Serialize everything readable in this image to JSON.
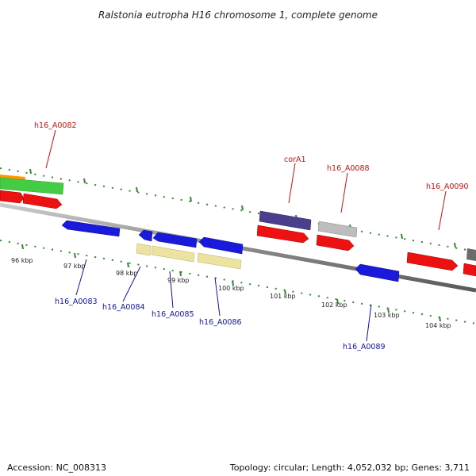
{
  "title": "Ralstonia eutropha H16 chromosome 1, complete genome",
  "footer": {
    "accession": "Accession: NC_008313",
    "summary": "Topology: circular; Length: 4,052,032 bp; Genes: 3,711"
  },
  "colors": {
    "backbone": "#8a8a8a",
    "tick": "#2e8b2e",
    "red_feature": "#ee1111",
    "blue_feature": "#1a1adc",
    "purple_feature": "#4a3f8c",
    "grey_feature": "#bdbdbd",
    "yellow_feature": "#ede3a0",
    "green_feature": "#44cc44",
    "orange_feature": "#ff9900",
    "label_red": "#cc1111",
    "label_blue": "#1111aa"
  },
  "tick_labels": [
    "96 kbp",
    "97 kbp",
    "98 kbp",
    "99 kbp",
    "100 kbp",
    "101 kbp",
    "102 kbp",
    "103 kbp",
    "104 kbp"
  ],
  "gene_labels_top": [
    "h16_A0082",
    "corA1",
    "h16_A0088",
    "h16_A0090"
  ],
  "gene_labels_bottom": [
    "h16_A0083",
    "h16_A0084",
    "h16_A0085",
    "h16_A0086",
    "h16_A0089"
  ]
}
